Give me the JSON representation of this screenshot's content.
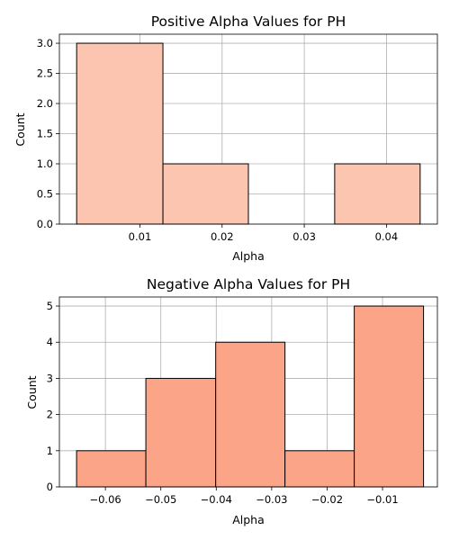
{
  "chart_data": [
    {
      "type": "bar",
      "title": "Positive Alpha Values for PH",
      "xlabel": "Alpha",
      "ylabel": "Count",
      "color": "#fcc5b0",
      "bins": [
        {
          "start": 0.0023,
          "end": 0.0128,
          "count": 3
        },
        {
          "start": 0.0128,
          "end": 0.0232,
          "count": 1
        },
        {
          "start": 0.0232,
          "end": 0.0337,
          "count": 0
        },
        {
          "start": 0.0337,
          "end": 0.0441,
          "count": 1
        }
      ],
      "xlim": [
        0.0002,
        0.0462
      ],
      "ylim": [
        0,
        3.15
      ],
      "xticks": [
        0.01,
        0.02,
        0.03,
        0.04
      ],
      "xtick_labels": [
        "0.01",
        "0.02",
        "0.03",
        "0.04"
      ],
      "yticks": [
        0,
        0.5,
        1,
        1.5,
        2,
        2.5,
        3
      ],
      "ytick_labels": [
        "0.0",
        "0.5",
        "1.0",
        "1.5",
        "2.0",
        "2.5",
        "3.0"
      ],
      "grid": true
    },
    {
      "type": "bar",
      "title": "Negative Alpha Values for PH",
      "xlabel": "Alpha",
      "ylabel": "Count",
      "color": "#fca487",
      "bins": [
        {
          "start": -0.0652,
          "end": -0.0527,
          "count": 1
        },
        {
          "start": -0.0527,
          "end": -0.0401,
          "count": 3
        },
        {
          "start": -0.0401,
          "end": -0.0276,
          "count": 4
        },
        {
          "start": -0.0276,
          "end": -0.0151,
          "count": 1
        },
        {
          "start": -0.0151,
          "end": -0.0026,
          "count": 5
        }
      ],
      "xlim": [
        -0.0683,
        -0.0001
      ],
      "ylim": [
        0,
        5.25
      ],
      "xticks": [
        -0.06,
        -0.05,
        -0.04,
        -0.03,
        -0.02,
        -0.01
      ],
      "xtick_labels": [
        "−0.06",
        "−0.05",
        "−0.04",
        "−0.03",
        "−0.02",
        "−0.01"
      ],
      "yticks": [
        0,
        1,
        2,
        3,
        4,
        5
      ],
      "ytick_labels": [
        "0",
        "1",
        "2",
        "3",
        "4",
        "5"
      ],
      "grid": true
    }
  ]
}
